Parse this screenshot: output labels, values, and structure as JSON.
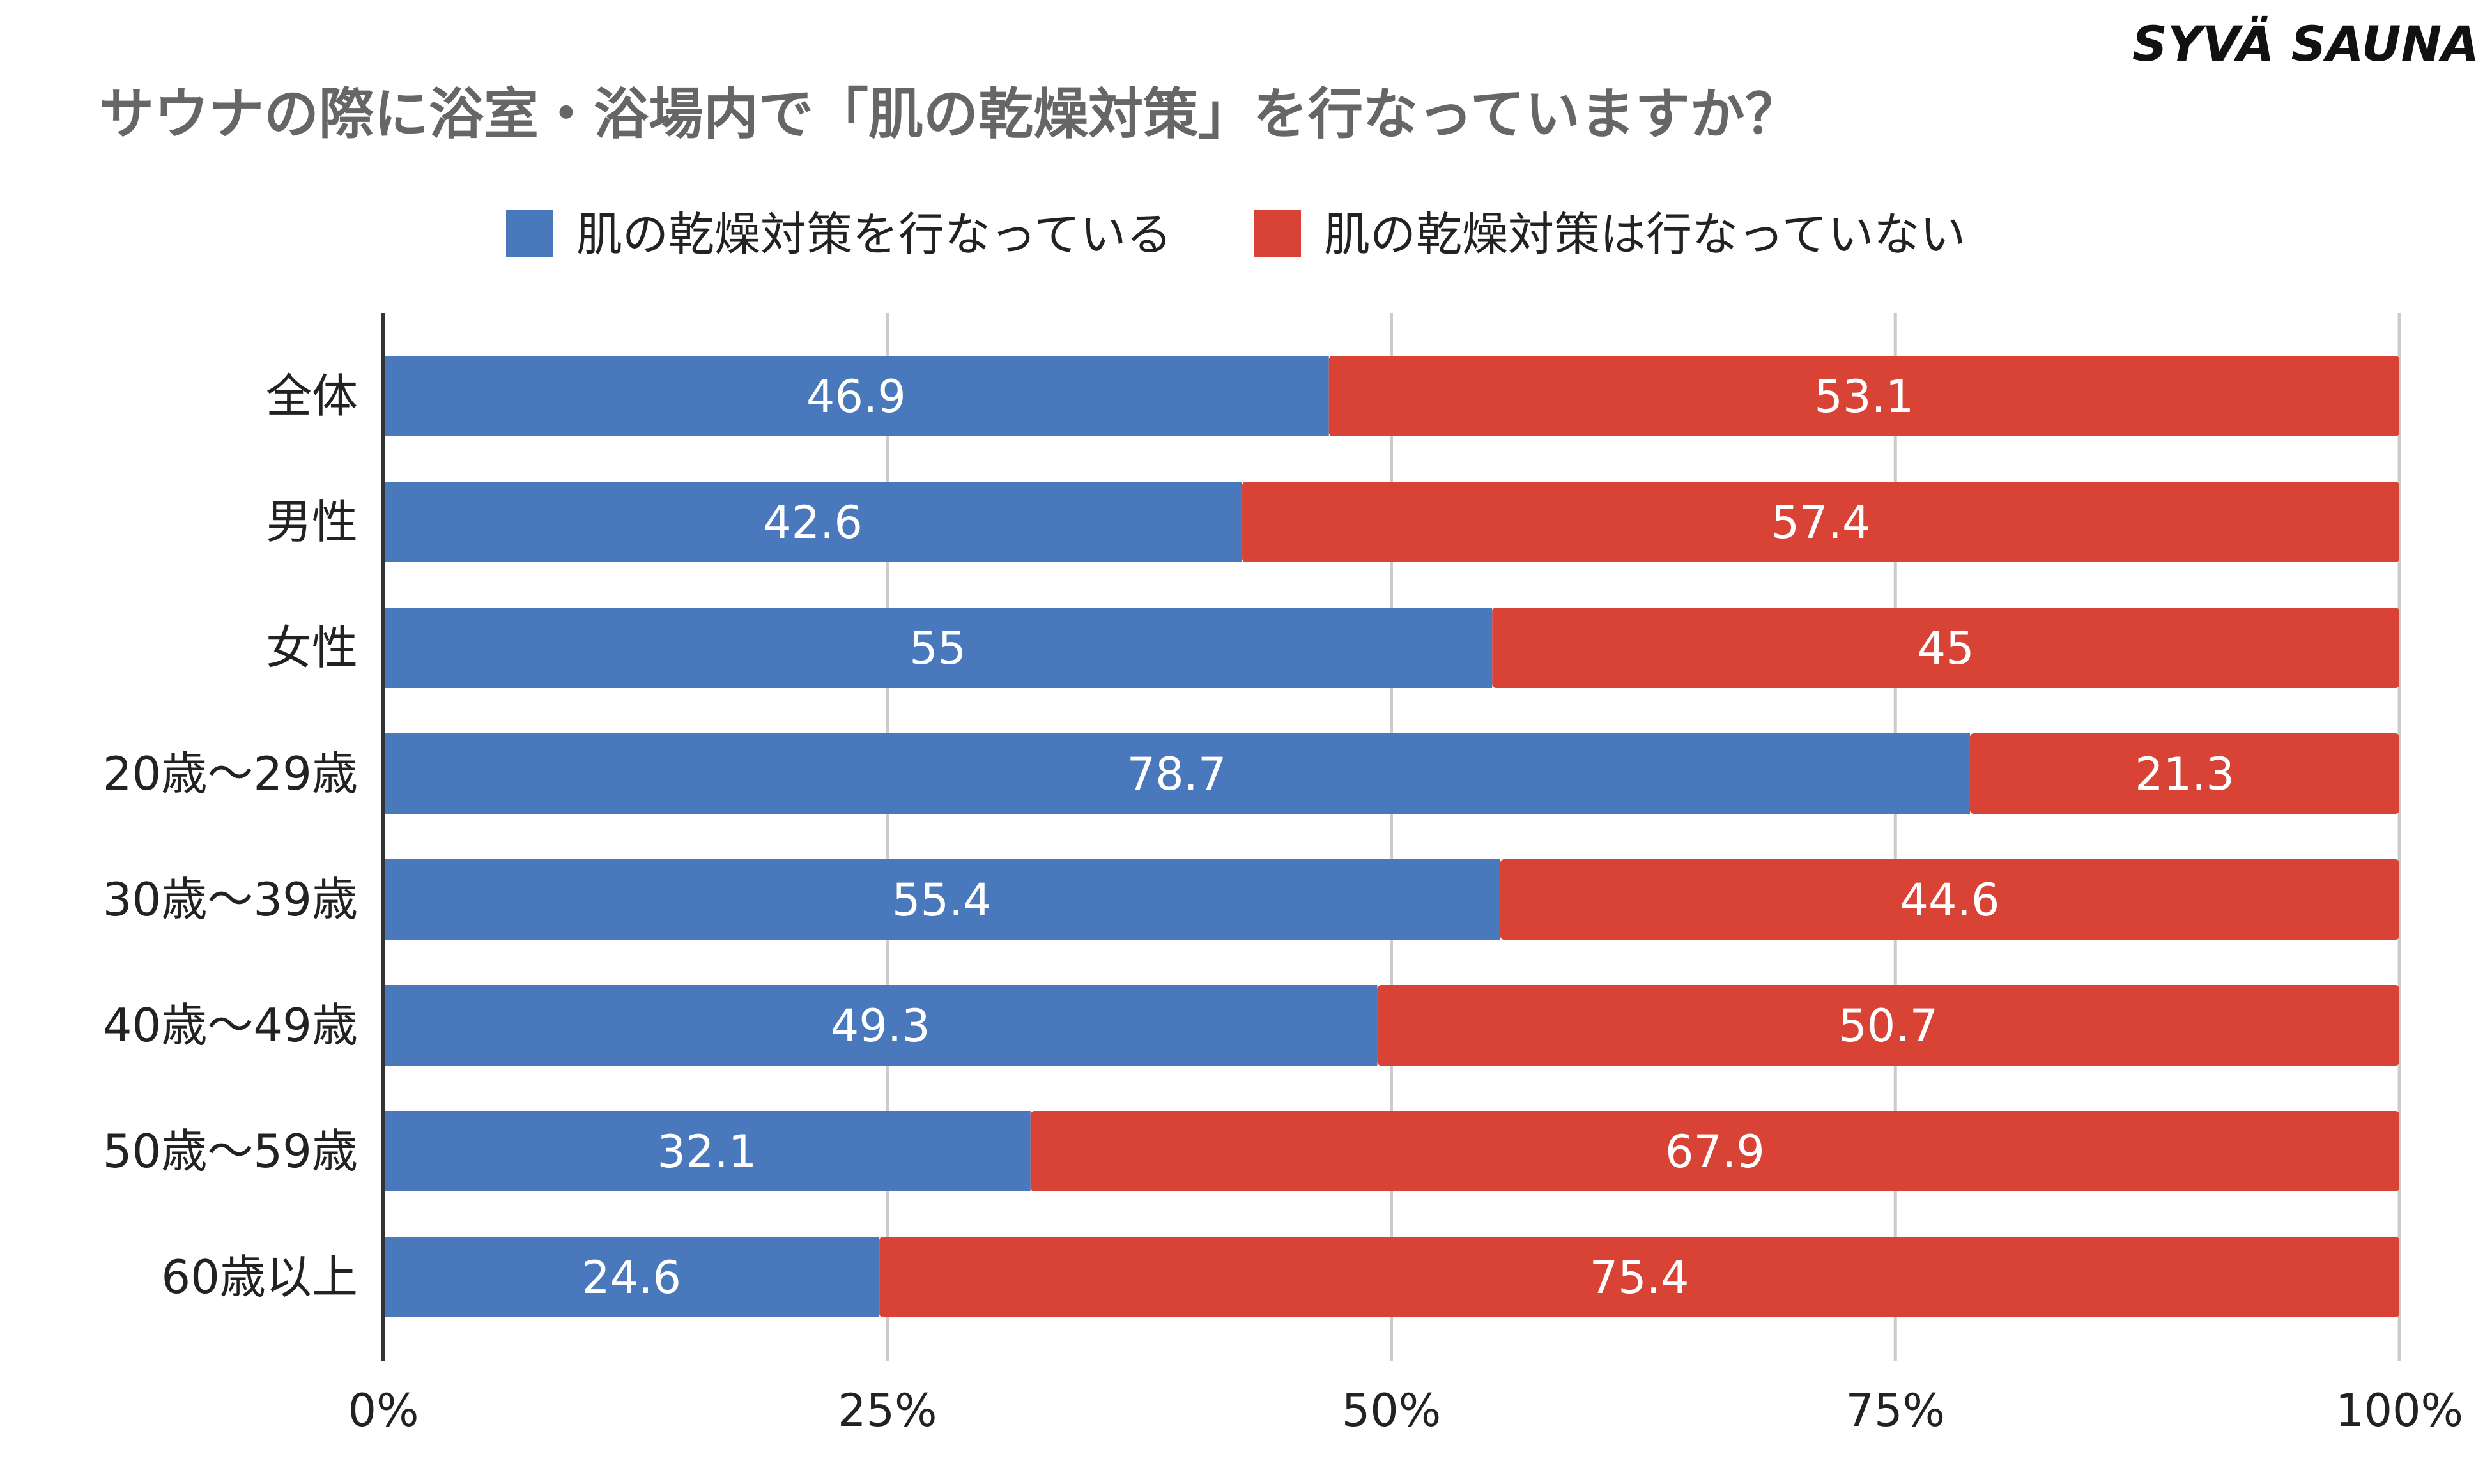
{
  "brand": "SYVÄ SAUNA",
  "colors": {
    "positive": "#4a78bd",
    "negative": "#d94336",
    "grid": "#cccccc",
    "axis": "#333333",
    "title": "#666666",
    "text": "#222222"
  },
  "chart_data": {
    "type": "bar",
    "orientation": "horizontal",
    "stacked": true,
    "title": "サウナの際に浴室・浴場内で「肌の乾燥対策」を行なっていますか？",
    "categories": [
      "全体",
      "男性",
      "女性",
      "20歳〜29歳",
      "30歳〜39歳",
      "40歳〜49歳",
      "50歳〜59歳",
      "60歳以上"
    ],
    "series": [
      {
        "name": "肌の乾燥対策を行なっている",
        "values": [
          46.9,
          42.6,
          55,
          78.7,
          55.4,
          49.3,
          32.1,
          24.6
        ]
      },
      {
        "name": "肌の乾燥対策は行なっていない",
        "values": [
          53.1,
          57.4,
          45,
          21.3,
          44.6,
          50.7,
          67.9,
          75.4
        ]
      }
    ],
    "xticks": [
      "0%",
      "25%",
      "50%",
      "75%",
      "100%"
    ],
    "xlim": [
      0,
      100
    ],
    "legend": "top-center",
    "grid": true
  }
}
